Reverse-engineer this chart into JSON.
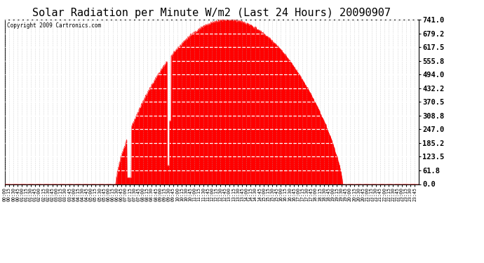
{
  "title": "Solar Radiation per Minute W/m2 (Last 24 Hours) 20090907",
  "copyright": "Copyright 2009 Cartronics.com",
  "y_ticks": [
    0.0,
    61.8,
    123.5,
    185.2,
    247.0,
    308.8,
    370.5,
    432.2,
    494.0,
    555.8,
    617.5,
    679.2,
    741.0
  ],
  "ymax": 741.0,
  "ymin": 0.0,
  "fill_color": "#ff0000",
  "line_color": "#ff0000",
  "dashed_line_color": "#ff0000",
  "grid_h_color": "#ffffff",
  "grid_v_color": "#aaaaaa",
  "bg_color": "#ffffff",
  "title_fontsize": 11,
  "total_minutes": 1440,
  "sunrise_min": 385,
  "sunset_min": 1175,
  "peak_time_min": 775,
  "peak_val": 741.0
}
